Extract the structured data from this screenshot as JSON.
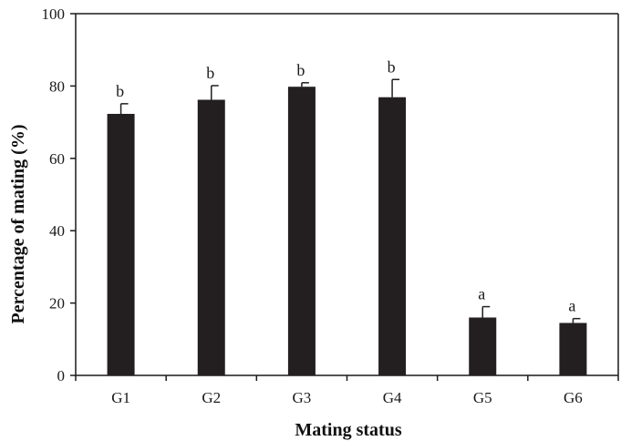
{
  "chart_data": {
    "type": "bar",
    "title": "",
    "xlabel": "Mating status",
    "ylabel": "Percentage of mating (%)",
    "categories": [
      "G1",
      "G2",
      "G3",
      "G4",
      "G5",
      "G6"
    ],
    "values": [
      72.3,
      76.2,
      79.8,
      76.9,
      16.0,
      14.5
    ],
    "errors": [
      2.8,
      3.9,
      1.1,
      4.9,
      3.0,
      1.2
    ],
    "significance": [
      "b",
      "b",
      "b",
      "b",
      "a",
      "a"
    ],
    "ylim": [
      0,
      100
    ],
    "yticks": [
      0,
      20,
      40,
      60,
      80,
      100
    ],
    "grid": false,
    "legend": "none",
    "bar_color": "#231f20",
    "axis_color": "#1a1a1a"
  }
}
